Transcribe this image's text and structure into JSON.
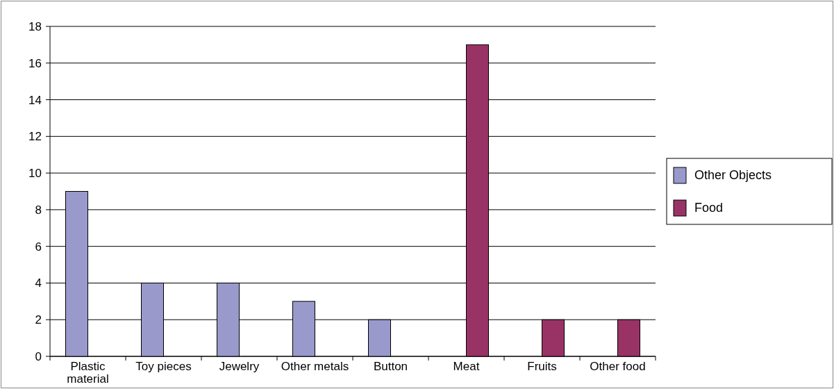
{
  "chart_data": {
    "type": "bar",
    "categories": [
      "Plastic material",
      "Toy pieces",
      "Jewelry",
      "Other metals",
      "Button",
      "Meat",
      "Fruits",
      "Other food"
    ],
    "series": [
      {
        "name": "Other Objects",
        "color": "#9999cc",
        "values": [
          9,
          4,
          4,
          3,
          2,
          null,
          null,
          null
        ]
      },
      {
        "name": "Food",
        "color": "#993366",
        "values": [
          null,
          null,
          null,
          null,
          null,
          17,
          2,
          2
        ]
      }
    ],
    "ylim": [
      0,
      18
    ],
    "yticks": [
      0,
      2,
      4,
      6,
      8,
      10,
      12,
      14,
      16,
      18
    ],
    "grid": "y",
    "legend": "right"
  }
}
